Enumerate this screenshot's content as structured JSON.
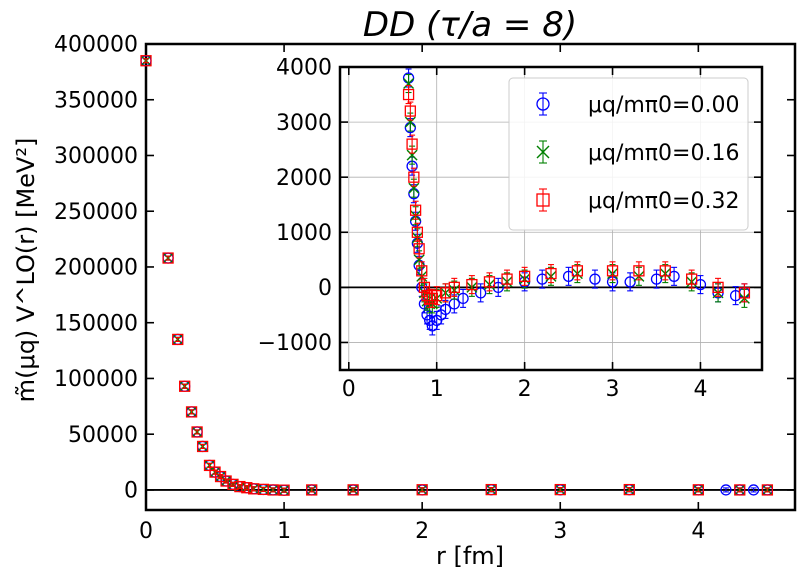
{
  "chart_data": [
    {
      "type": "scatter",
      "title": "DD (τ/a = 8)",
      "xlabel": "r [fm]",
      "ylabel": "m̃(μq) V^LO(r) [MeV²]",
      "xlim": [
        0,
        4.7
      ],
      "ylim": [
        -18000,
        400000
      ],
      "x_ticks": [
        "0",
        "1",
        "2",
        "3",
        "4"
      ],
      "y_ticks": [
        "0",
        "50000",
        "100000",
        "150000",
        "200000",
        "250000",
        "300000",
        "350000",
        "400000"
      ],
      "grid": false,
      "series": [
        {
          "name": "μq/mπ0=0.00",
          "marker": "circle",
          "color": "#0000ff",
          "x": [
            0.0,
            0.16,
            0.23,
            0.28,
            0.33,
            0.37,
            0.41,
            0.46,
            0.5,
            0.54,
            0.58,
            0.63,
            0.68,
            0.73,
            0.78,
            0.85,
            0.92,
            1.0,
            1.2,
            1.5,
            2.0,
            2.5,
            3.0,
            3.5,
            4.0,
            4.2,
            4.3,
            4.4,
            4.5
          ],
          "y": [
            385000,
            208000,
            135000,
            93000,
            70000,
            52000,
            39000,
            22000,
            16000,
            12000,
            8000,
            5000,
            3000,
            2000,
            1000,
            400,
            0,
            -300,
            0,
            0,
            0,
            200,
            100,
            200,
            0,
            0,
            0,
            0,
            0
          ]
        },
        {
          "name": "μq/mπ0=0.16",
          "marker": "x",
          "color": "#008000",
          "x": [
            0.0,
            0.16,
            0.23,
            0.28,
            0.33,
            0.37,
            0.41,
            0.46,
            0.5,
            0.54,
            0.58,
            0.63,
            0.68,
            0.73,
            0.78,
            0.85,
            0.92,
            1.0,
            1.2,
            1.5,
            2.0,
            2.5,
            3.0,
            3.5,
            4.0,
            4.3,
            4.5
          ],
          "y": [
            385000,
            208000,
            135000,
            93000,
            70000,
            52000,
            39000,
            22000,
            16000,
            12000,
            8000,
            5000,
            3000,
            2000,
            1000,
            500,
            0,
            -200,
            0,
            50,
            150,
            250,
            200,
            250,
            100,
            0,
            0
          ]
        },
        {
          "name": "μq/mπ0=0.32",
          "marker": "square",
          "color": "#ff0000",
          "x": [
            0.0,
            0.16,
            0.23,
            0.28,
            0.33,
            0.37,
            0.41,
            0.46,
            0.5,
            0.54,
            0.58,
            0.63,
            0.68,
            0.73,
            0.78,
            0.85,
            0.92,
            1.0,
            1.2,
            1.5,
            2.0,
            2.5,
            3.0,
            3.5,
            4.0,
            4.3,
            4.5
          ],
          "y": [
            385000,
            208000,
            135000,
            93000,
            70000,
            52000,
            39000,
            22000,
            16000,
            12000,
            8000,
            5000,
            3000,
            2000,
            1000,
            500,
            0,
            -200,
            0,
            50,
            150,
            300,
            300,
            300,
            100,
            0,
            0
          ]
        }
      ]
    },
    {
      "type": "scatter",
      "title": "",
      "xlabel": "",
      "ylabel": "",
      "xlim": [
        -0.1,
        4.7
      ],
      "ylim": [
        -1500,
        4000
      ],
      "x_ticks": [
        "0",
        "1",
        "2",
        "3",
        "4"
      ],
      "y_ticks": [
        "−1000",
        "0",
        "1000",
        "2000",
        "3000",
        "4000"
      ],
      "grid": true,
      "legend": {
        "position": "top-right",
        "entries": [
          "μq/mπ0=0.00",
          "μq/mπ0=0.16",
          "μq/mπ0=0.32"
        ]
      },
      "series": [
        {
          "name": "μq/mπ0=0.00",
          "marker": "circle",
          "color": "#0000ff",
          "x": [
            0.68,
            0.7,
            0.72,
            0.74,
            0.76,
            0.78,
            0.8,
            0.83,
            0.86,
            0.89,
            0.92,
            0.95,
            1.0,
            1.05,
            1.1,
            1.2,
            1.3,
            1.5,
            1.7,
            2.0,
            2.2,
            2.5,
            2.8,
            3.0,
            3.2,
            3.5,
            3.7,
            4.0,
            4.2,
            4.4,
            4.5
          ],
          "y": [
            3800,
            2900,
            2200,
            1700,
            1200,
            800,
            400,
            0,
            -300,
            -500,
            -600,
            -700,
            -600,
            -500,
            -400,
            -300,
            -200,
            -100,
            0,
            100,
            150,
            200,
            150,
            100,
            100,
            150,
            200,
            50,
            -100,
            -150,
            -100
          ]
        },
        {
          "name": "μq/mπ0=0.16",
          "marker": "x",
          "color": "#008000",
          "x": [
            0.68,
            0.7,
            0.72,
            0.74,
            0.76,
            0.78,
            0.8,
            0.83,
            0.86,
            0.89,
            0.92,
            0.95,
            1.0,
            1.1,
            1.2,
            1.4,
            1.6,
            1.8,
            2.0,
            2.3,
            2.6,
            3.0,
            3.3,
            3.6,
            3.9,
            4.2,
            4.5
          ],
          "y": [
            3700,
            3000,
            2400,
            1800,
            1300,
            900,
            500,
            200,
            -100,
            -250,
            -300,
            -300,
            -200,
            -100,
            -50,
            0,
            50,
            100,
            150,
            200,
            250,
            250,
            200,
            250,
            100,
            -100,
            -200
          ]
        },
        {
          "name": "μq/mπ0=0.32",
          "marker": "square",
          "color": "#ff0000",
          "x": [
            0.68,
            0.7,
            0.72,
            0.74,
            0.76,
            0.78,
            0.8,
            0.83,
            0.86,
            0.89,
            0.92,
            0.95,
            1.0,
            1.1,
            1.2,
            1.4,
            1.6,
            1.8,
            2.0,
            2.3,
            2.6,
            3.0,
            3.3,
            3.6,
            3.9,
            4.2,
            4.5
          ],
          "y": [
            3500,
            3200,
            2600,
            2000,
            1400,
            1000,
            700,
            300,
            0,
            -150,
            -200,
            -200,
            -150,
            -100,
            0,
            50,
            100,
            150,
            200,
            250,
            300,
            300,
            300,
            300,
            150,
            0,
            -100
          ]
        }
      ]
    }
  ]
}
